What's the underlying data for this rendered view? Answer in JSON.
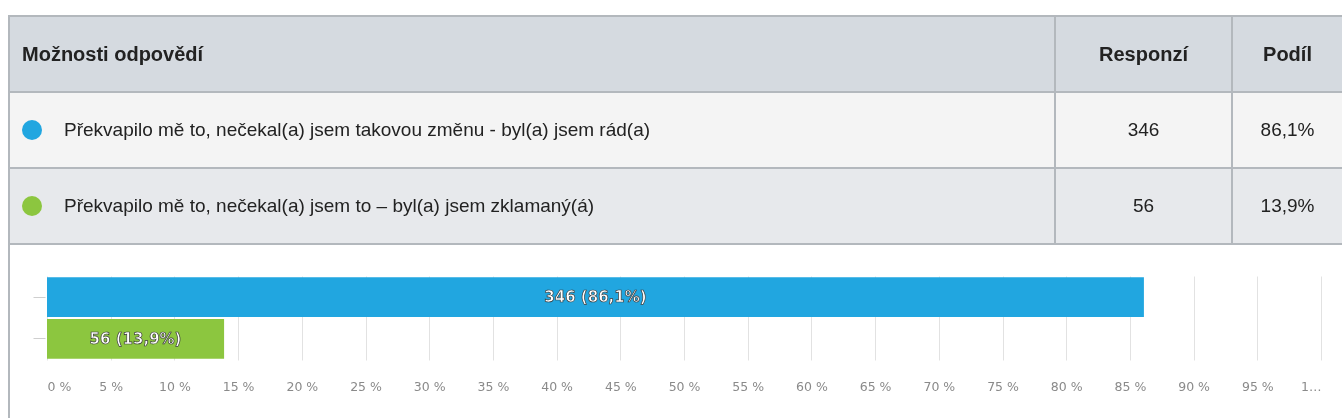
{
  "chart_data": [
    {
      "type": "other",
      "annotations": [
        "Možnosti odpovědí",
        "Responzí",
        "Podíl",
        "Překvapilo mě to, nečekal(a) jsem takovou změnu - byl(a) jsem rád(a)",
        "346",
        "86,1%",
        "Překvapilo mě to, nečekal(a) jsem to – byl(a) jsem zklamaný(á)",
        "56",
        "13,9%"
      ]
    },
    {
      "type": "bar",
      "orientation": "horizontal",
      "categories": [
        null,
        null
      ],
      "values": [
        86.1,
        13.9
      ],
      "colors": [
        "#21a6e0",
        "#8cc63f"
      ],
      "value_labels": [
        "346 (86,1%)",
        "56 (13,9%)"
      ],
      "xlim": [
        0,
        100
      ],
      "xticks": [
        {
          "value": 0,
          "label": "0 %"
        },
        {
          "value": 5,
          "label": "5 %"
        },
        {
          "value": 10,
          "label": "10 %"
        },
        {
          "value": 15,
          "label": "15 %"
        },
        {
          "value": 20,
          "label": "20 %"
        },
        {
          "value": 25,
          "label": "25 %"
        },
        {
          "value": 30,
          "label": "30 %"
        },
        {
          "value": 35,
          "label": "35 %"
        },
        {
          "value": 40,
          "label": "40 %"
        },
        {
          "value": 45,
          "label": "45 %"
        },
        {
          "value": 50,
          "label": "50 %"
        },
        {
          "value": 55,
          "label": "55 %"
        },
        {
          "value": 60,
          "label": "60 %"
        },
        {
          "value": 65,
          "label": "65 %"
        },
        {
          "value": 70,
          "label": "70 %"
        },
        {
          "value": 75,
          "label": "75 %"
        },
        {
          "value": 80,
          "label": "80 %"
        },
        {
          "value": 85,
          "label": "85 %"
        },
        {
          "value": 90,
          "label": "90 %"
        },
        {
          "value": 95,
          "label": "95 %"
        },
        {
          "value": 100,
          "label": "1…"
        }
      ],
      "grid": "x",
      "tick_labels": "x"
    }
  ]
}
